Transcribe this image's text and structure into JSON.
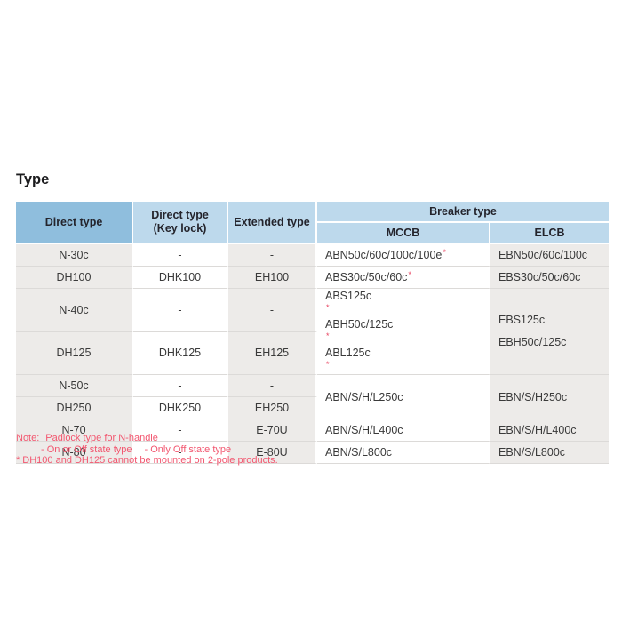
{
  "page": {
    "title": "Type"
  },
  "colors": {
    "header_blue_dark": "#8fbedd",
    "header_blue_light": "#bdd9ec",
    "row_gray": "#edebe9",
    "row_white": "#ffffff",
    "note_pink": "#f2566f",
    "asterisk_red": "#e8415f"
  },
  "table": {
    "header": {
      "col1": "Direct type",
      "col2_line1": "Direct type",
      "col2_line2": "(Key lock)",
      "col3": "Extended type",
      "breaker": "Breaker type",
      "mccb": "MCCB",
      "elcb": "ELCB"
    },
    "rows": [
      {
        "direct": "N-30c",
        "keylock": "-",
        "extended": "-"
      },
      {
        "direct": "DH100",
        "keylock": "DHK100",
        "extended": "EH100"
      },
      {
        "direct": "N-40c",
        "keylock": "-",
        "extended": "-"
      },
      {
        "direct": "DH125",
        "keylock": "DHK125",
        "extended": "EH125"
      },
      {
        "direct": "N-50c",
        "keylock": "-",
        "extended": "-"
      },
      {
        "direct": "DH250",
        "keylock": "DHK250",
        "extended": "EH250"
      },
      {
        "direct": "N-70",
        "keylock": "-",
        "extended": "E-70U"
      },
      {
        "direct": "N-80",
        "keylock": "-",
        "extended": "E-80U"
      }
    ],
    "mccb_cells": [
      {
        "lines": [
          {
            "text": "ABN50c/60c/100c/100e",
            "mark": "*"
          }
        ]
      },
      {
        "lines": [
          {
            "text": "ABS30c/50c/60c",
            "mark": "*"
          }
        ]
      },
      {
        "lines": [
          {
            "text": "ABS125c",
            "mark": "*"
          },
          {
            "text": "ABH50c/125c",
            "mark": "*"
          },
          {
            "text": "ABL125c",
            "mark": "*"
          }
        ]
      },
      {
        "lines": [
          {
            "text": "ABN/S/H/L250c"
          }
        ]
      },
      {
        "lines": [
          {
            "text": "ABN/S/H/L400c"
          }
        ]
      },
      {
        "lines": [
          {
            "text": "ABN/S/L800c"
          }
        ]
      }
    ],
    "elcb_cells": [
      {
        "lines": [
          {
            "text": "EBN50c/60c/100c"
          }
        ]
      },
      {
        "lines": [
          {
            "text": "EBS30c/50c/60c"
          }
        ]
      },
      {
        "lines": [
          {
            "text": "EBS125c"
          },
          {
            "text": "EBH50c/125c"
          }
        ]
      },
      {
        "lines": [
          {
            "text": "EBN/S/H250c"
          }
        ]
      },
      {
        "lines": [
          {
            "text": "EBN/S/H/L400c"
          }
        ]
      },
      {
        "lines": [
          {
            "text": "EBN/S/L800c"
          }
        ]
      }
    ]
  },
  "note": {
    "label": "Note:",
    "line1": "Padlock type for N-handle",
    "line2_first": "- On or Off state type",
    "line2_second": "- Only Off state type",
    "line3_mark": "*",
    "line3_text": "DH100 and DH125 cannot be mounted on 2-pole products."
  }
}
